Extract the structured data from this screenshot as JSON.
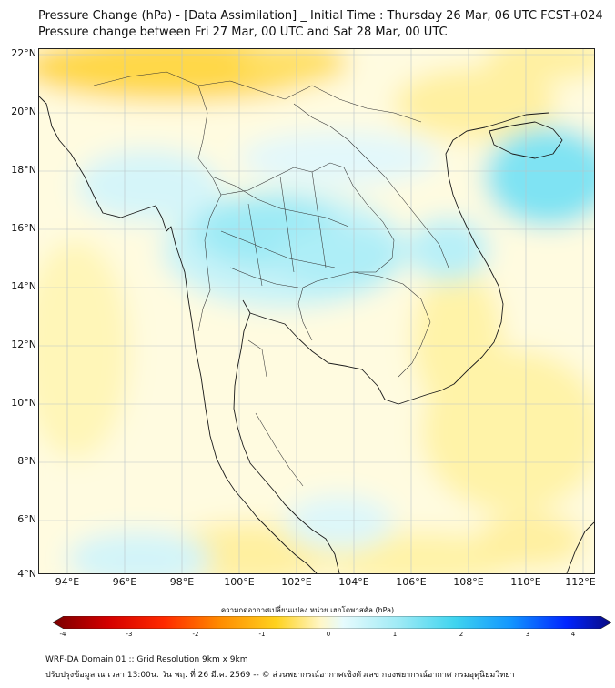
{
  "title_line1": "Pressure Change (hPa) - [Data Assimilation] _ Initial Time : Thursday 26 Mar, 06 UTC FCST+024",
  "title_line2": "Pressure change between Fri 27 Mar, 00 UTC and Sat 28 Mar, 00 UTC",
  "map": {
    "lat_range": [
      4,
      22
    ],
    "lon_range": [
      93,
      112.5
    ],
    "lat_ticks": [
      "22°N",
      "20°N",
      "18°N",
      "16°N",
      "14°N",
      "12°N",
      "10°N",
      "8°N",
      "6°N",
      "4°N"
    ],
    "lon_ticks": [
      "94°E",
      "96°E",
      "98°E",
      "100°E",
      "102°E",
      "104°E",
      "106°E",
      "108°E",
      "110°E",
      "112°E"
    ],
    "field_colors": {
      "negative_strong": "#ffd21e",
      "negative_weak": "#fff3a8",
      "positive_weak": "#c8f3f8",
      "positive_strong": "#5fdff2",
      "background": "#fffbe0"
    }
  },
  "colorbar": {
    "title": "ความกดอากาศเปลี่ยนแปลง หน่วย เฮกโตพาสคัล (hPa)",
    "min": -4,
    "max": 4,
    "ticks": [
      "-4",
      "-3",
      "-2",
      "-1",
      "0",
      "1",
      "2",
      "3",
      "4"
    ]
  },
  "footer_line1": "WRF-DA Domain 01 :: Grid Resolution 9km x 9km",
  "footer_line2": "ปรับปรุงข้อมูล ณ เวลา 13:00น. วัน พฤ. ที่ 26 มี.ค. 2569 -- © ส่วนพยากรณ์อากาศเชิงตัวเลข กองพยากรณ์อากาศ กรมอุตุนิยมวิทยา"
}
